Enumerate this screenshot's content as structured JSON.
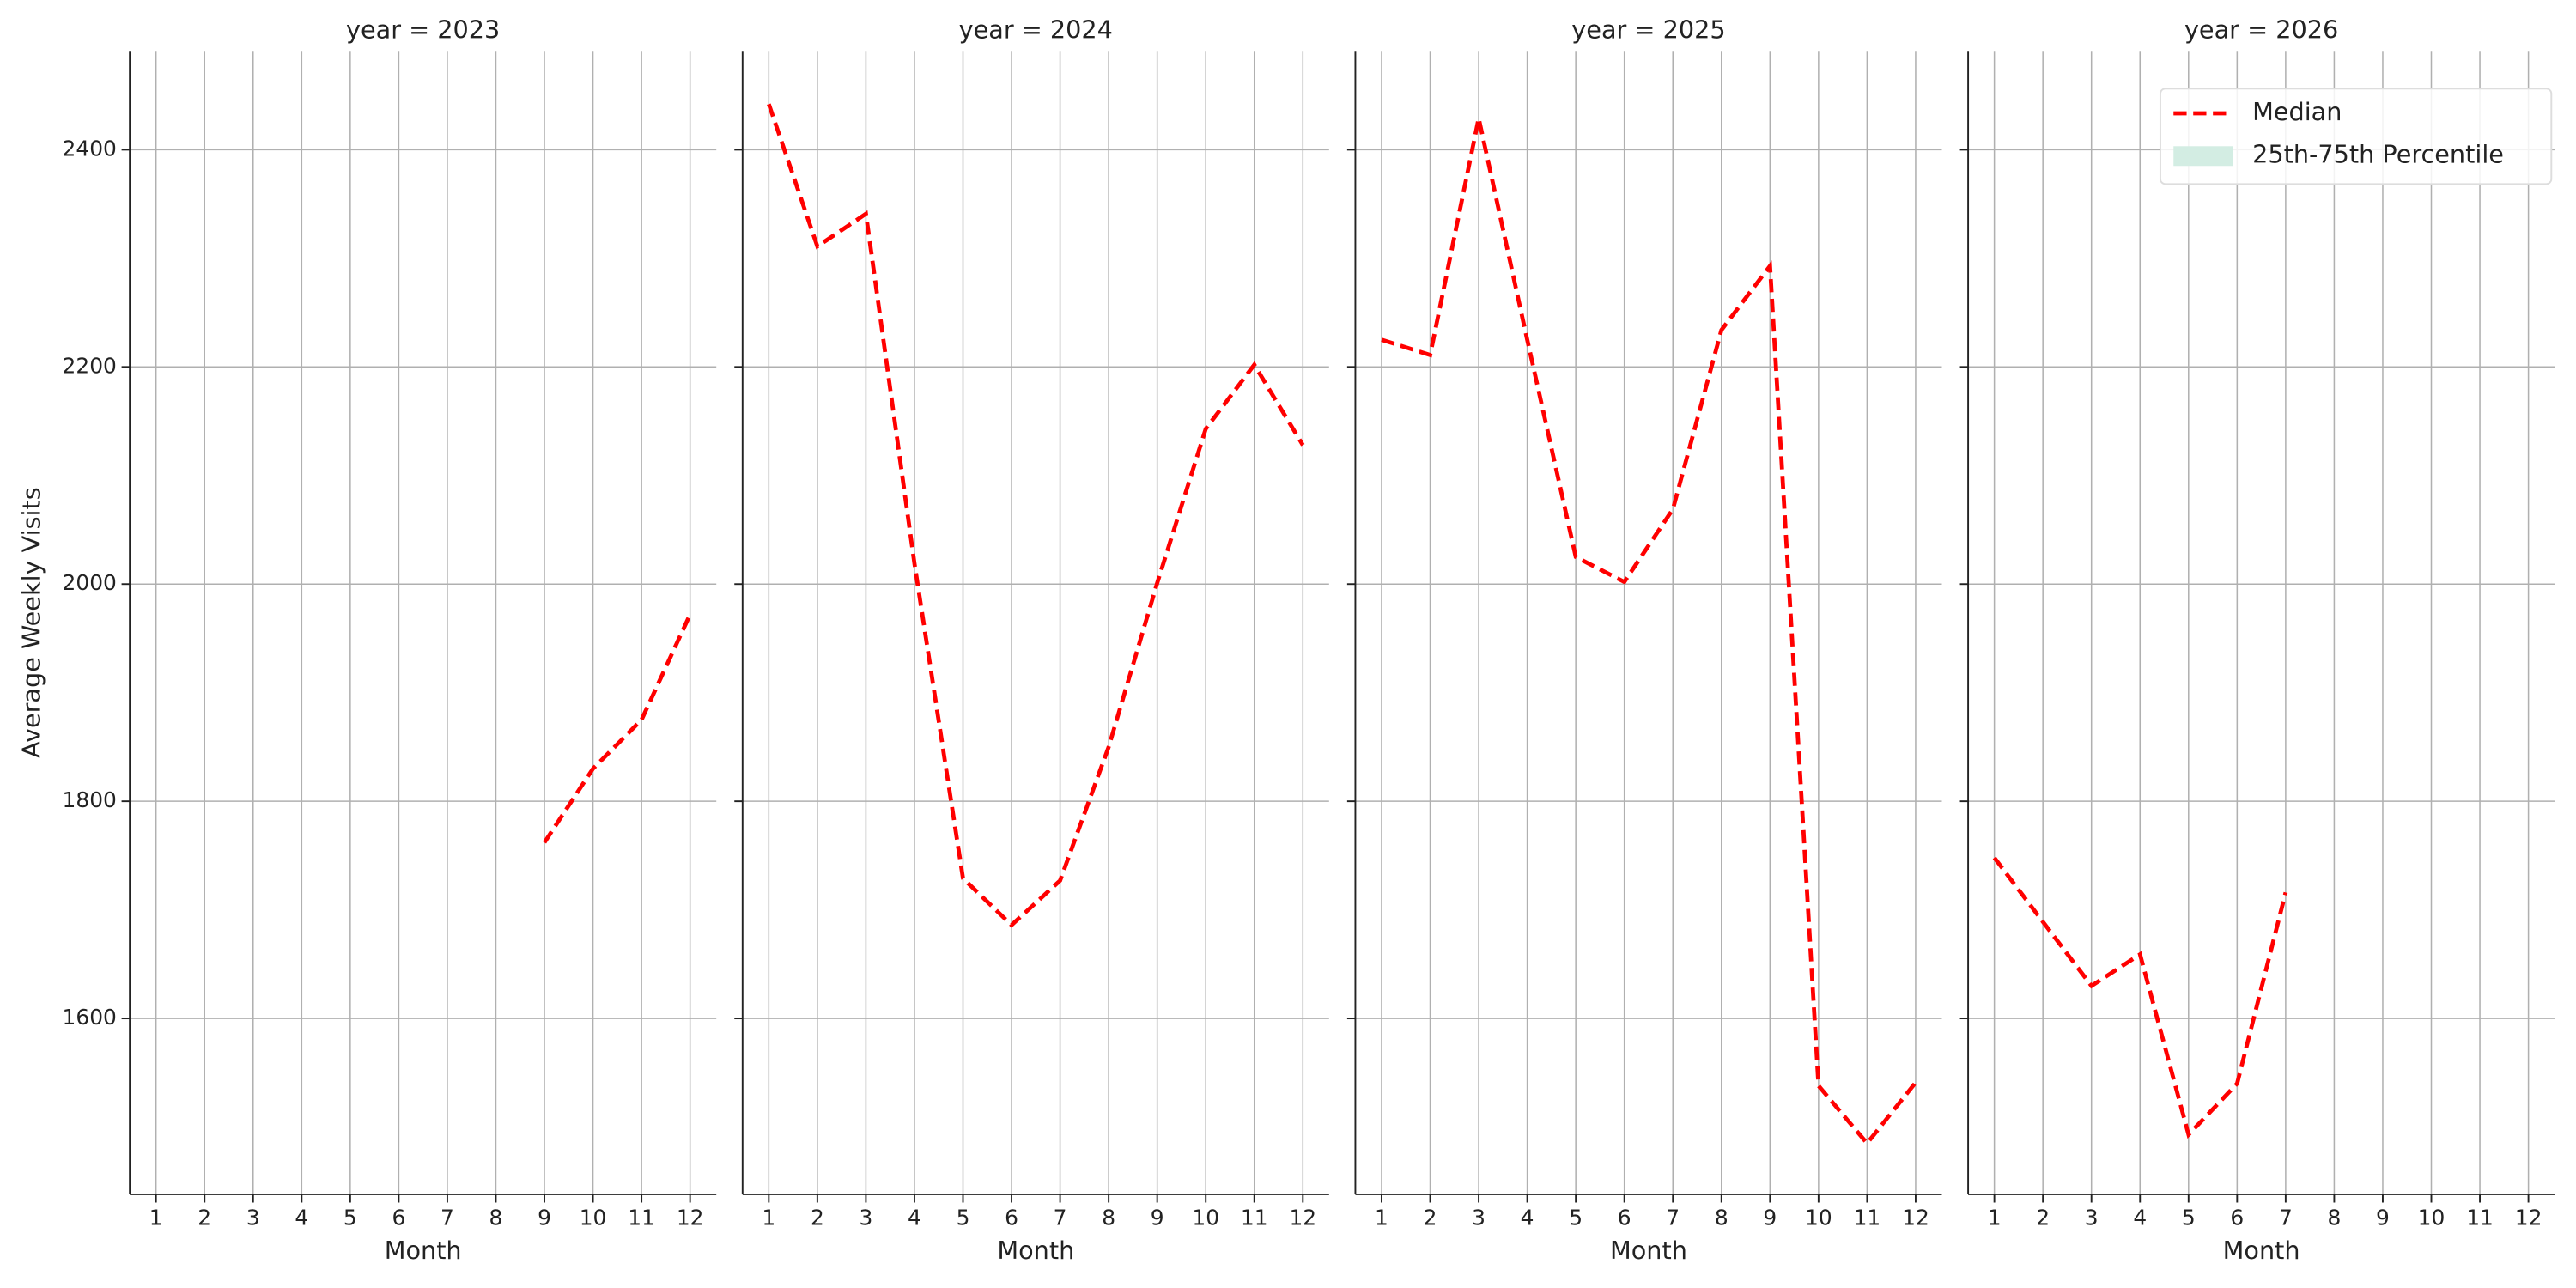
{
  "chart_data": [
    {
      "type": "line",
      "title": "year = 2023",
      "xlabel": "Month",
      "ylabel": "Average Weekly Visits",
      "x": [
        1,
        2,
        3,
        4,
        5,
        6,
        7,
        8,
        9,
        10,
        11,
        12
      ],
      "series": [
        {
          "name": "Median",
          "color": "#ff0000",
          "values": [
            null,
            null,
            null,
            null,
            null,
            null,
            null,
            null,
            1762,
            1830,
            1875,
            1972
          ]
        }
      ],
      "xlim": [
        0.46,
        12.54
      ],
      "xticks": [
        1,
        2,
        3,
        4,
        5,
        6,
        7,
        8,
        9,
        10,
        11,
        12
      ],
      "ylim": [
        1438,
        2491
      ],
      "yticks": [
        1600,
        1800,
        2000,
        2200,
        2400
      ],
      "grid": true
    },
    {
      "type": "line",
      "title": "year = 2024",
      "xlabel": "Month",
      "x": [
        1,
        2,
        3,
        4,
        5,
        6,
        7,
        8,
        9,
        10,
        11,
        12
      ],
      "series": [
        {
          "name": "Median",
          "color": "#ff0000",
          "values": [
            2442,
            2311,
            2341,
            2019,
            1729,
            1686,
            1727,
            1850,
            2001,
            2143,
            2202,
            2128
          ]
        }
      ],
      "xlim": [
        0.46,
        12.54
      ],
      "xticks": [
        1,
        2,
        3,
        4,
        5,
        6,
        7,
        8,
        9,
        10,
        11,
        12
      ],
      "ylim": [
        1438,
        2491
      ],
      "yticks": [
        1600,
        1800,
        2000,
        2200,
        2400
      ],
      "grid": true
    },
    {
      "type": "line",
      "title": "year = 2025",
      "xlabel": "Month",
      "x": [
        1,
        2,
        3,
        4,
        5,
        6,
        7,
        8,
        9,
        10,
        11,
        12
      ],
      "series": [
        {
          "name": "Median",
          "color": "#ff0000",
          "values": [
            2225,
            2211,
            2429,
            2225,
            2025,
            2002,
            2069,
            2234,
            2293,
            1538,
            1485,
            1541
          ]
        }
      ],
      "xlim": [
        0.46,
        12.54
      ],
      "xticks": [
        1,
        2,
        3,
        4,
        5,
        6,
        7,
        8,
        9,
        10,
        11,
        12
      ],
      "ylim": [
        1438,
        2491
      ],
      "yticks": [
        1600,
        1800,
        2000,
        2200,
        2400
      ],
      "grid": true
    },
    {
      "type": "line",
      "title": "year = 2026",
      "xlabel": "Month",
      "x": [
        1,
        2,
        3,
        4,
        5,
        6,
        7,
        8,
        9,
        10,
        11,
        12
      ],
      "series": [
        {
          "name": "Median",
          "color": "#ff0000",
          "values": [
            1748,
            1689,
            1630,
            1659,
            1493,
            1540,
            1716,
            null,
            null,
            null,
            null,
            null
          ]
        },
        {
          "name": "25th-75th Percentile",
          "color": "#d3ede3",
          "values": [
            null,
            null,
            null,
            null,
            null,
            null,
            null,
            null,
            null,
            null,
            null,
            null
          ]
        }
      ],
      "xlim": [
        0.46,
        12.54
      ],
      "xticks": [
        1,
        2,
        3,
        4,
        5,
        6,
        7,
        8,
        9,
        10,
        11,
        12
      ],
      "ylim": [
        1438,
        2491
      ],
      "yticks": [
        1600,
        1800,
        2000,
        2200,
        2400
      ],
      "grid": true,
      "legend": "upper right"
    }
  ]
}
